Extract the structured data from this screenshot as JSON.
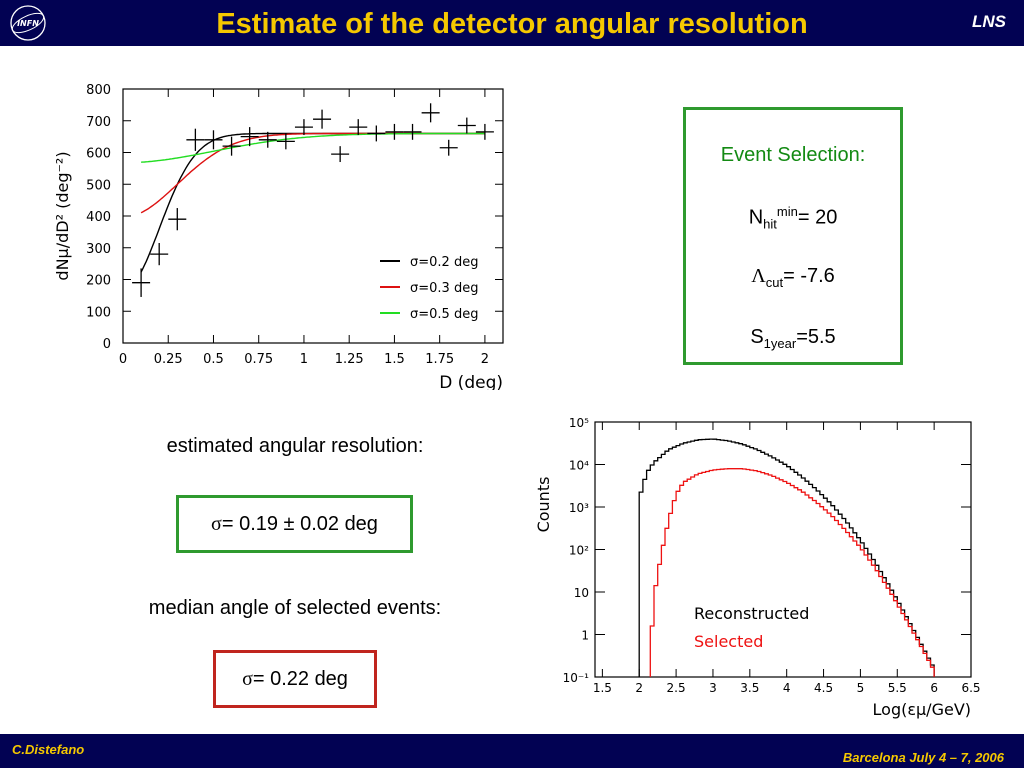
{
  "header": {
    "title": "Estimate of the detector angular resolution",
    "lab": "LNS",
    "logo_text": "INFN"
  },
  "footer": {
    "author": "C.Distefano",
    "venue": "Barcelona July 4 – 7, 2006"
  },
  "colors": {
    "bar": "#020253",
    "title": "#f5c800",
    "green": "#2f9a2f",
    "red": "#c0251e"
  },
  "event_selection": {
    "title": "Event Selection:",
    "nhit_base": "N",
    "nhit_sub": "hit",
    "nhit_sup": "min",
    "nhit_value": "= 20",
    "lambda_base": "Λ",
    "lambda_sub": "cut",
    "lambda_value": "= -7.6",
    "s_base": "S",
    "s_sub": "1year",
    "s_value": "=5.5"
  },
  "resolution": {
    "label": "estimated angular resolution:",
    "symbol": "σ",
    "value": "= 0.19 ± 0.02 deg"
  },
  "median": {
    "label": "median angle of selected events:",
    "symbol": "σ",
    "value": "= 0.22 deg"
  },
  "chart_data": [
    {
      "type": "scatter",
      "xlabel": "D (deg)",
      "ylabel": "dNμ/dD² (deg⁻²)",
      "xlim": [
        0,
        2.1
      ],
      "ylim": [
        0,
        800
      ],
      "x_ticks": [
        0,
        0.25,
        0.5,
        0.75,
        1,
        1.25,
        1.5,
        1.75,
        2
      ],
      "x_tick_labels": [
        "0",
        "0.25",
        "0.5",
        "0.75",
        "1",
        "1.25",
        "1.5",
        "1.75",
        "2"
      ],
      "y_ticks": [
        0,
        100,
        200,
        300,
        400,
        500,
        600,
        700,
        800
      ],
      "y_tick_labels": [
        "0",
        "100",
        "200",
        "300",
        "400",
        "500",
        "600",
        "700",
        "800"
      ],
      "points": [
        {
          "x": 0.1,
          "y": 190,
          "yerr": 45
        },
        {
          "x": 0.2,
          "y": 280,
          "yerr": 35
        },
        {
          "x": 0.3,
          "y": 390,
          "yerr": 35
        },
        {
          "x": 0.4,
          "y": 640,
          "yerr": 35
        },
        {
          "x": 0.5,
          "y": 640,
          "yerr": 30
        },
        {
          "x": 0.6,
          "y": 620,
          "yerr": 30
        },
        {
          "x": 0.7,
          "y": 650,
          "yerr": 30
        },
        {
          "x": 0.8,
          "y": 640,
          "yerr": 25
        },
        {
          "x": 0.9,
          "y": 635,
          "yerr": 25
        },
        {
          "x": 1.0,
          "y": 680,
          "yerr": 25
        },
        {
          "x": 1.1,
          "y": 705,
          "yerr": 30
        },
        {
          "x": 1.2,
          "y": 595,
          "yerr": 25
        },
        {
          "x": 1.3,
          "y": 680,
          "yerr": 25
        },
        {
          "x": 1.4,
          "y": 660,
          "yerr": 25
        },
        {
          "x": 1.5,
          "y": 665,
          "yerr": 25
        },
        {
          "x": 1.6,
          "y": 665,
          "yerr": 25
        },
        {
          "x": 1.7,
          "y": 725,
          "yerr": 30
        },
        {
          "x": 1.8,
          "y": 615,
          "yerr": 25
        },
        {
          "x": 1.9,
          "y": 685,
          "yerr": 25
        },
        {
          "x": 2.0,
          "y": 665,
          "yerr": 25
        }
      ],
      "series": [
        {
          "name": "σ=0.2 deg",
          "color": "#000000",
          "sigma": 0.2,
          "plateau": 660,
          "xmin": 0.1
        },
        {
          "name": "σ=0.3 deg",
          "color": "#dd1111",
          "sigma": 0.3,
          "plateau": 660,
          "xmin": 0.1
        },
        {
          "name": "σ=0.5 deg",
          "color": "#22dd22",
          "sigma": 0.5,
          "plateau": 660,
          "xmin": 0.1
        }
      ],
      "legend_position": "right"
    },
    {
      "type": "line",
      "xlabel": "Log(εμ/GeV)",
      "ylabel": "Counts",
      "y_scale": "log",
      "xlim": [
        1.4,
        6.5
      ],
      "ylim_log10": [
        -1,
        5
      ],
      "x_ticks": [
        1.5,
        2,
        2.5,
        3,
        3.5,
        4,
        4.5,
        5,
        5.5,
        6,
        6.5
      ],
      "x_tick_labels": [
        "1.5",
        "2",
        "2.5",
        "3",
        "3.5",
        "4",
        "4.5",
        "5",
        "5.5",
        "6",
        "6.5"
      ],
      "y_ticks_log10": [
        -1,
        0,
        1,
        2,
        3,
        4,
        5
      ],
      "y_tick_labels": [
        "10⁻¹",
        "1",
        "10",
        "10²",
        "10³",
        "10⁴",
        "10⁵"
      ],
      "series": [
        {
          "name": "Reconstructed",
          "color": "#000000",
          "x": [
            2.0,
            2.1,
            2.2,
            2.4,
            2.6,
            2.8,
            3.0,
            3.2,
            3.4,
            3.6,
            3.8,
            4.0,
            4.2,
            4.4,
            4.6,
            4.8,
            5.0,
            5.2,
            5.4,
            5.6,
            5.8,
            6.0
          ],
          "log10_y": [
            3.2,
            3.8,
            4.05,
            4.35,
            4.5,
            4.58,
            4.6,
            4.56,
            4.48,
            4.35,
            4.18,
            3.98,
            3.72,
            3.42,
            3.08,
            2.68,
            2.22,
            1.7,
            1.12,
            0.5,
            -0.15,
            -0.8
          ]
        },
        {
          "name": "Selected",
          "color": "#ee1111",
          "x": [
            2.15,
            2.2,
            2.3,
            2.4,
            2.5,
            2.6,
            2.8,
            3.0,
            3.2,
            3.4,
            3.6,
            3.8,
            4.0,
            4.2,
            4.4,
            4.6,
            4.8,
            5.0,
            5.2,
            5.4,
            5.6,
            5.8,
            6.0
          ],
          "log10_y": [
            -0.5,
            0.9,
            1.9,
            2.7,
            3.3,
            3.58,
            3.78,
            3.87,
            3.9,
            3.9,
            3.85,
            3.74,
            3.58,
            3.38,
            3.12,
            2.82,
            2.45,
            2.05,
            1.57,
            1.02,
            0.42,
            -0.2,
            -0.85
          ]
        }
      ],
      "legend_position": "bottom-right"
    }
  ]
}
